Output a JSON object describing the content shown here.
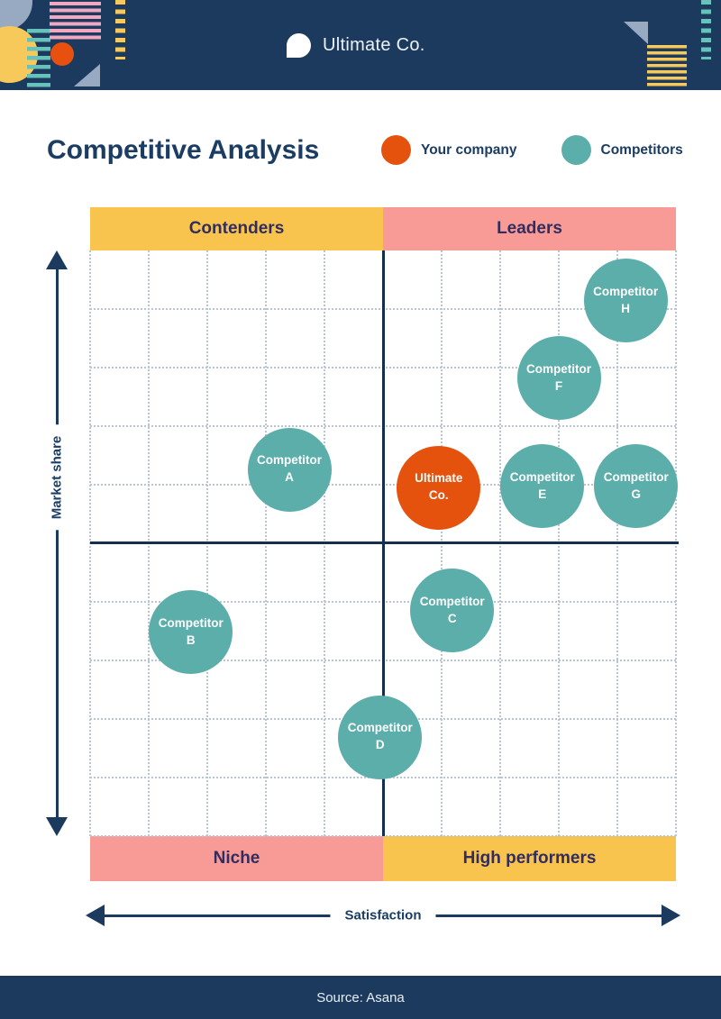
{
  "header": {
    "logo_text": "Ultimate Co."
  },
  "footer": {
    "source": "Source: Asana"
  },
  "colors": {
    "navy": "#1B3A5E",
    "your_company_orange": "#E5520E",
    "competitor_teal": "#5CAEAA",
    "band_yellow": "#F8C44D",
    "band_pink": "#F89B97"
  },
  "chart_data": {
    "type": "scatter",
    "title": "Competitive Analysis",
    "xlabel": "Satisfaction",
    "ylabel": "Market share",
    "x_range": [
      0,
      1
    ],
    "y_range": [
      0,
      1
    ],
    "grid": "dotted, 10x10 cells",
    "legend": [
      "Your company",
      "Competitors"
    ],
    "legend_position": "top-right of title row",
    "quadrant_labels": {
      "top_left": "Contenders",
      "top_right": "Leaders",
      "bottom_left": "Niche",
      "bottom_right": "High performers"
    },
    "series": [
      {
        "name": "Your company",
        "color": "#E5520E",
        "points": [
          {
            "label": "Ultimate Co.",
            "lines": [
              "Ultimate",
              "Co."
            ],
            "x": 0.595,
            "y": 0.595
          }
        ]
      },
      {
        "name": "Competitors",
        "color": "#5CAEAA",
        "points": [
          {
            "label": "Competitor A",
            "lines": [
              "Competitor",
              "A"
            ],
            "x": 0.34,
            "y": 0.626
          },
          {
            "label": "Competitor B",
            "lines": [
              "Competitor",
              "B"
            ],
            "x": 0.172,
            "y": 0.348
          },
          {
            "label": "Competitor C",
            "lines": [
              "Competitor",
              "C"
            ],
            "x": 0.618,
            "y": 0.385
          },
          {
            "label": "Competitor D",
            "lines": [
              "Competitor",
              "D"
            ],
            "x": 0.495,
            "y": 0.169
          },
          {
            "label": "Competitor E",
            "lines": [
              "Competitor",
              "E"
            ],
            "x": 0.772,
            "y": 0.597
          },
          {
            "label": "Competitor F",
            "lines": [
              "Competitor",
              "F"
            ],
            "x": 0.8,
            "y": 0.782
          },
          {
            "label": "Competitor G",
            "lines": [
              "Competitor",
              "G"
            ],
            "x": 0.932,
            "y": 0.597
          },
          {
            "label": "Competitor H",
            "lines": [
              "Competitor",
              "H"
            ],
            "x": 0.914,
            "y": 0.914
          }
        ]
      }
    ]
  }
}
